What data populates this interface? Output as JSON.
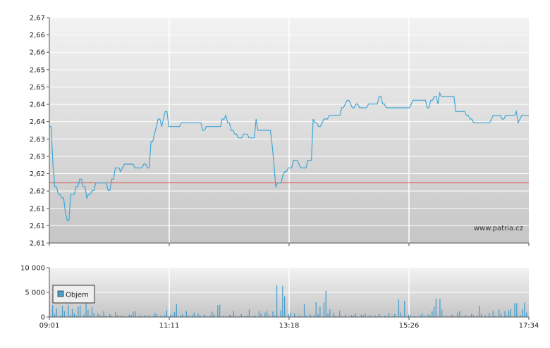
{
  "chart_data": [
    {
      "type": "line",
      "title": "",
      "xlabel": "",
      "ylabel": "",
      "x_ticks": [
        "09:01",
        "11:11",
        "13:18",
        "15:26",
        "17:34"
      ],
      "y_ticks": [
        "2,61",
        "2,61",
        "2,61",
        "2,62",
        "2,62",
        "2,63",
        "2,63",
        "2,64",
        "2,64",
        "2,65",
        "2,65",
        "2,66",
        "2,66",
        "2,67"
      ],
      "ylim": [
        2.61,
        2.67
      ],
      "grid": true,
      "reference_line": 2.626,
      "watermark": "www.patria.cz",
      "series": [
        {
          "values": [
            2.641,
            2.641,
            2.631,
            2.625,
            2.625,
            2.623,
            2.623,
            2.622,
            2.622,
            2.618,
            2.616,
            2.616,
            2.623,
            2.623,
            2.623,
            2.625,
            2.625,
            2.627,
            2.627,
            2.625,
            2.625,
            2.622,
            2.623,
            2.623,
            2.624,
            2.624,
            2.626,
            2.626,
            2.626,
            2.626,
            2.626,
            2.626,
            2.626,
            2.624,
            2.624,
            2.627,
            2.627,
            2.63,
            2.63,
            2.63,
            2.629,
            2.63,
            2.631,
            2.631,
            2.631,
            2.631,
            2.631,
            2.631,
            2.63,
            2.63,
            2.63,
            2.63,
            2.63,
            2.631,
            2.631,
            2.63,
            2.63,
            2.637,
            2.637,
            2.639,
            2.641,
            2.643,
            2.643,
            2.641,
            2.643,
            2.645,
            2.645,
            2.641,
            2.641,
            2.641,
            2.641,
            2.641,
            2.641,
            2.641,
            2.642,
            2.642,
            2.642,
            2.642,
            2.642,
            2.642,
            2.642,
            2.642,
            2.642,
            2.642,
            2.642,
            2.642,
            2.64,
            2.64,
            2.641,
            2.641,
            2.641,
            2.641,
            2.641,
            2.641,
            2.641,
            2.641,
            2.641,
            2.643,
            2.643,
            2.644,
            2.642,
            2.642,
            2.64,
            2.64,
            2.639,
            2.639,
            2.638,
            2.638,
            2.638,
            2.639,
            2.639,
            2.639,
            2.638,
            2.638,
            2.638,
            2.638,
            2.643,
            2.64,
            2.64,
            2.64,
            2.64,
            2.64,
            2.64,
            2.64,
            2.64,
            2.636,
            2.631,
            2.625,
            2.626,
            2.626,
            2.626,
            2.628,
            2.629,
            2.629,
            2.63,
            2.63,
            2.63,
            2.632,
            2.632,
            2.632,
            2.631,
            2.63,
            2.63,
            2.63,
            2.63,
            2.632,
            2.632,
            2.632,
            2.643,
            2.642,
            2.642,
            2.641,
            2.641,
            2.642,
            2.643,
            2.643,
            2.643,
            2.644,
            2.644,
            2.644,
            2.644,
            2.644,
            2.644,
            2.644,
            2.646,
            2.646,
            2.647,
            2.648,
            2.648,
            2.647,
            2.646,
            2.646,
            2.647,
            2.647,
            2.646,
            2.646,
            2.646,
            2.646,
            2.646,
            2.647,
            2.647,
            2.647,
            2.647,
            2.647,
            2.647,
            2.649,
            2.649,
            2.647,
            2.647,
            2.646,
            2.646,
            2.646,
            2.646,
            2.646,
            2.646,
            2.646,
            2.646,
            2.646,
            2.646,
            2.646,
            2.646,
            2.646,
            2.646,
            2.647,
            2.648,
            2.648,
            2.648,
            2.648,
            2.648,
            2.648,
            2.648,
            2.648,
            2.646,
            2.646,
            2.648,
            2.648,
            2.649,
            2.649,
            2.647,
            2.65,
            2.649,
            2.649,
            2.649,
            2.649,
            2.649,
            2.649,
            2.649,
            2.649,
            2.645,
            2.645,
            2.645,
            2.645,
            2.645,
            2.645,
            2.644,
            2.644,
            2.643,
            2.643,
            2.642,
            2.642,
            2.642,
            2.642,
            2.642,
            2.642,
            2.642,
            2.642,
            2.642,
            2.642,
            2.643,
            2.644,
            2.644,
            2.644,
            2.644,
            2.644,
            2.643,
            2.643,
            2.644,
            2.644,
            2.644,
            2.644,
            2.644,
            2.644,
            2.645,
            2.642,
            2.643,
            2.644,
            2.644,
            2.644,
            2.644,
            2.644
          ]
        }
      ]
    },
    {
      "type": "bar",
      "title": "",
      "xlabel": "",
      "ylabel": "",
      "x_ticks": [
        "09:01",
        "11:11",
        "13:18",
        "15:26",
        "17:34"
      ],
      "y_ticks": [
        "0",
        "5 000",
        "10 000"
      ],
      "ylim": [
        0,
        10000
      ],
      "grid": true,
      "legend": {
        "position": "left",
        "entries": [
          "Objem"
        ]
      },
      "series": [
        {
          "name": "Objem",
          "color": "#4a9fd0",
          "values": [
            2400,
            600,
            1800,
            0,
            300,
            2300,
            1200,
            0,
            2500,
            400,
            1600,
            700,
            300,
            2100,
            2400,
            0,
            500,
            3700,
            1500,
            300,
            2000,
            800,
            0,
            700,
            400,
            300,
            1200,
            200,
            0,
            600,
            300,
            0,
            1000,
            400,
            0,
            300,
            200,
            100,
            0,
            500,
            400,
            1100,
            1200,
            0,
            300,
            200,
            0,
            400,
            100,
            300,
            0,
            200,
            800,
            600,
            0,
            300,
            0,
            400,
            1400,
            100,
            500,
            300,
            1000,
            2600,
            0,
            300,
            600,
            0,
            1200,
            300,
            0,
            400,
            900,
            100,
            700,
            300,
            0,
            500,
            200,
            0,
            300,
            1100,
            600,
            0,
            2400,
            2500,
            0,
            300,
            100,
            0,
            500,
            200,
            1200,
            300,
            0,
            100,
            600,
            0,
            200,
            300,
            1500,
            0,
            200,
            300,
            0,
            1200,
            700,
            0,
            900,
            1200,
            400,
            0,
            1100,
            300,
            6400,
            0,
            1300,
            6300,
            4200,
            0,
            600,
            900,
            100,
            700,
            0,
            200,
            300,
            0,
            2600,
            200,
            0,
            500,
            0,
            400,
            3000,
            600,
            2200,
            0,
            3000,
            5300,
            700,
            1600,
            0,
            900,
            300,
            0,
            1300,
            200,
            0,
            500,
            100,
            0,
            400,
            300,
            800,
            100,
            0,
            500,
            300,
            700,
            0,
            400,
            200,
            0,
            300,
            100,
            600,
            200,
            0,
            300,
            100,
            800,
            0,
            200,
            600,
            0,
            3600,
            900,
            100,
            3300,
            0,
            500,
            300,
            0,
            200,
            100,
            0,
            400,
            800,
            200,
            0,
            500,
            300,
            1200,
            2100,
            3700,
            0,
            3700,
            1500,
            0,
            300,
            100,
            0,
            500,
            200,
            0,
            900,
            1200,
            100,
            0,
            400,
            200,
            0,
            600,
            400,
            0,
            300,
            2300,
            700,
            0,
            300,
            100,
            800,
            0,
            1200,
            200,
            0,
            1500,
            700,
            0,
            1200,
            300,
            1300,
            1700,
            0,
            2800,
            2800,
            0,
            400,
            1600,
            2900,
            900
          ]
        }
      ]
    }
  ]
}
